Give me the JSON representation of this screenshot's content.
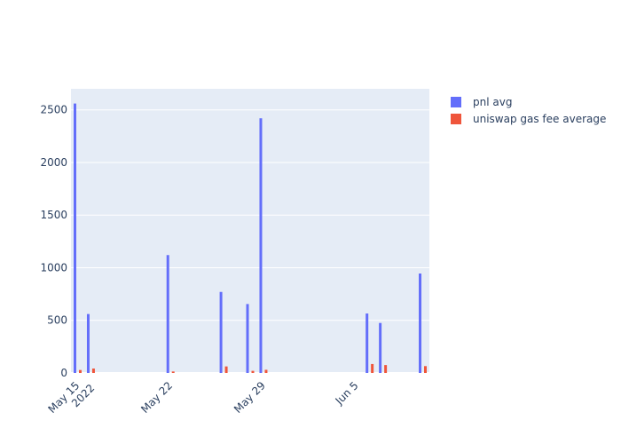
{
  "chart_data": {
    "type": "bar",
    "categories": [
      "May 15",
      "May 16",
      "May 22",
      "May 26",
      "May 28",
      "May 29",
      "Jun 6",
      "Jun 7",
      "Jun 10"
    ],
    "series": [
      {
        "name": "pnl avg",
        "color": "#636efa",
        "values": [
          2560,
          560,
          1120,
          770,
          655,
          2420,
          565,
          475,
          945
        ]
      },
      {
        "name": "uniswap gas fee average",
        "color": "#ef553b",
        "values": [
          28,
          42,
          14,
          62,
          20,
          30,
          85,
          75,
          65
        ]
      }
    ],
    "x_ticks": [
      {
        "date": "May 15",
        "label": "May 15",
        "sublabel": "2022"
      },
      {
        "date": "May 22",
        "label": "May 22"
      },
      {
        "date": "May 29",
        "label": "May 29"
      },
      {
        "date": "Jun 5",
        "label": "Jun 5"
      }
    ],
    "y_ticks": [
      0,
      500,
      1000,
      1500,
      2000,
      2500
    ],
    "ylim": [
      0,
      2700
    ],
    "grid": true,
    "legend_position": "top-right",
    "plot_background": "#e5ecf6"
  }
}
